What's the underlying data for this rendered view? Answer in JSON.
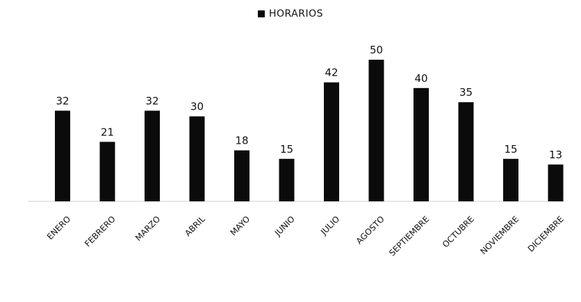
{
  "chart_data": {
    "type": "bar",
    "categories": [
      "ENERO",
      "FEBRERO",
      "MARZO",
      "ABRIL",
      "MAYO",
      "JUNIO",
      "JULIO",
      "AGOSTO",
      "SEPTIEMBRE",
      "OCTUBRE",
      "NOVIEMBRE",
      "DICIEMBRE"
    ],
    "series": [
      {
        "name": "HORARIOS",
        "values": [
          32,
          21,
          32,
          30,
          18,
          15,
          42,
          50,
          40,
          35,
          15,
          13
        ]
      }
    ],
    "ylim": [
      0,
      50
    ],
    "grid": false,
    "legend": "top-center",
    "bar_color": "#0b0b0b",
    "data_labels": true
  }
}
